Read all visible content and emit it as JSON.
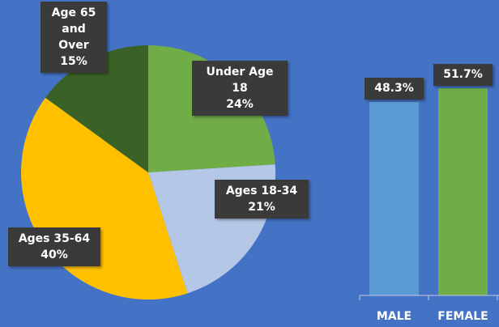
{
  "chart_data": [
    {
      "type": "pie",
      "categories": [
        "Under Age 18",
        "Ages 18-34",
        "Ages 35-64",
        "Age 65 and Over"
      ],
      "values": [
        24,
        21,
        40,
        15
      ],
      "value_labels": [
        "24%",
        "21%",
        "40%",
        "15%"
      ],
      "colors": [
        "#70ad47",
        "#b4c7e7",
        "#ffc000",
        "#3b6226"
      ]
    },
    {
      "type": "bar",
      "categories": [
        "MALE",
        "FEMALE"
      ],
      "values": [
        48.3,
        51.7
      ],
      "value_labels": [
        "48.3%",
        "51.7%"
      ],
      "colors": [
        "#5b9bd5",
        "#70ad47"
      ],
      "ylim": [
        0,
        60
      ]
    }
  ]
}
